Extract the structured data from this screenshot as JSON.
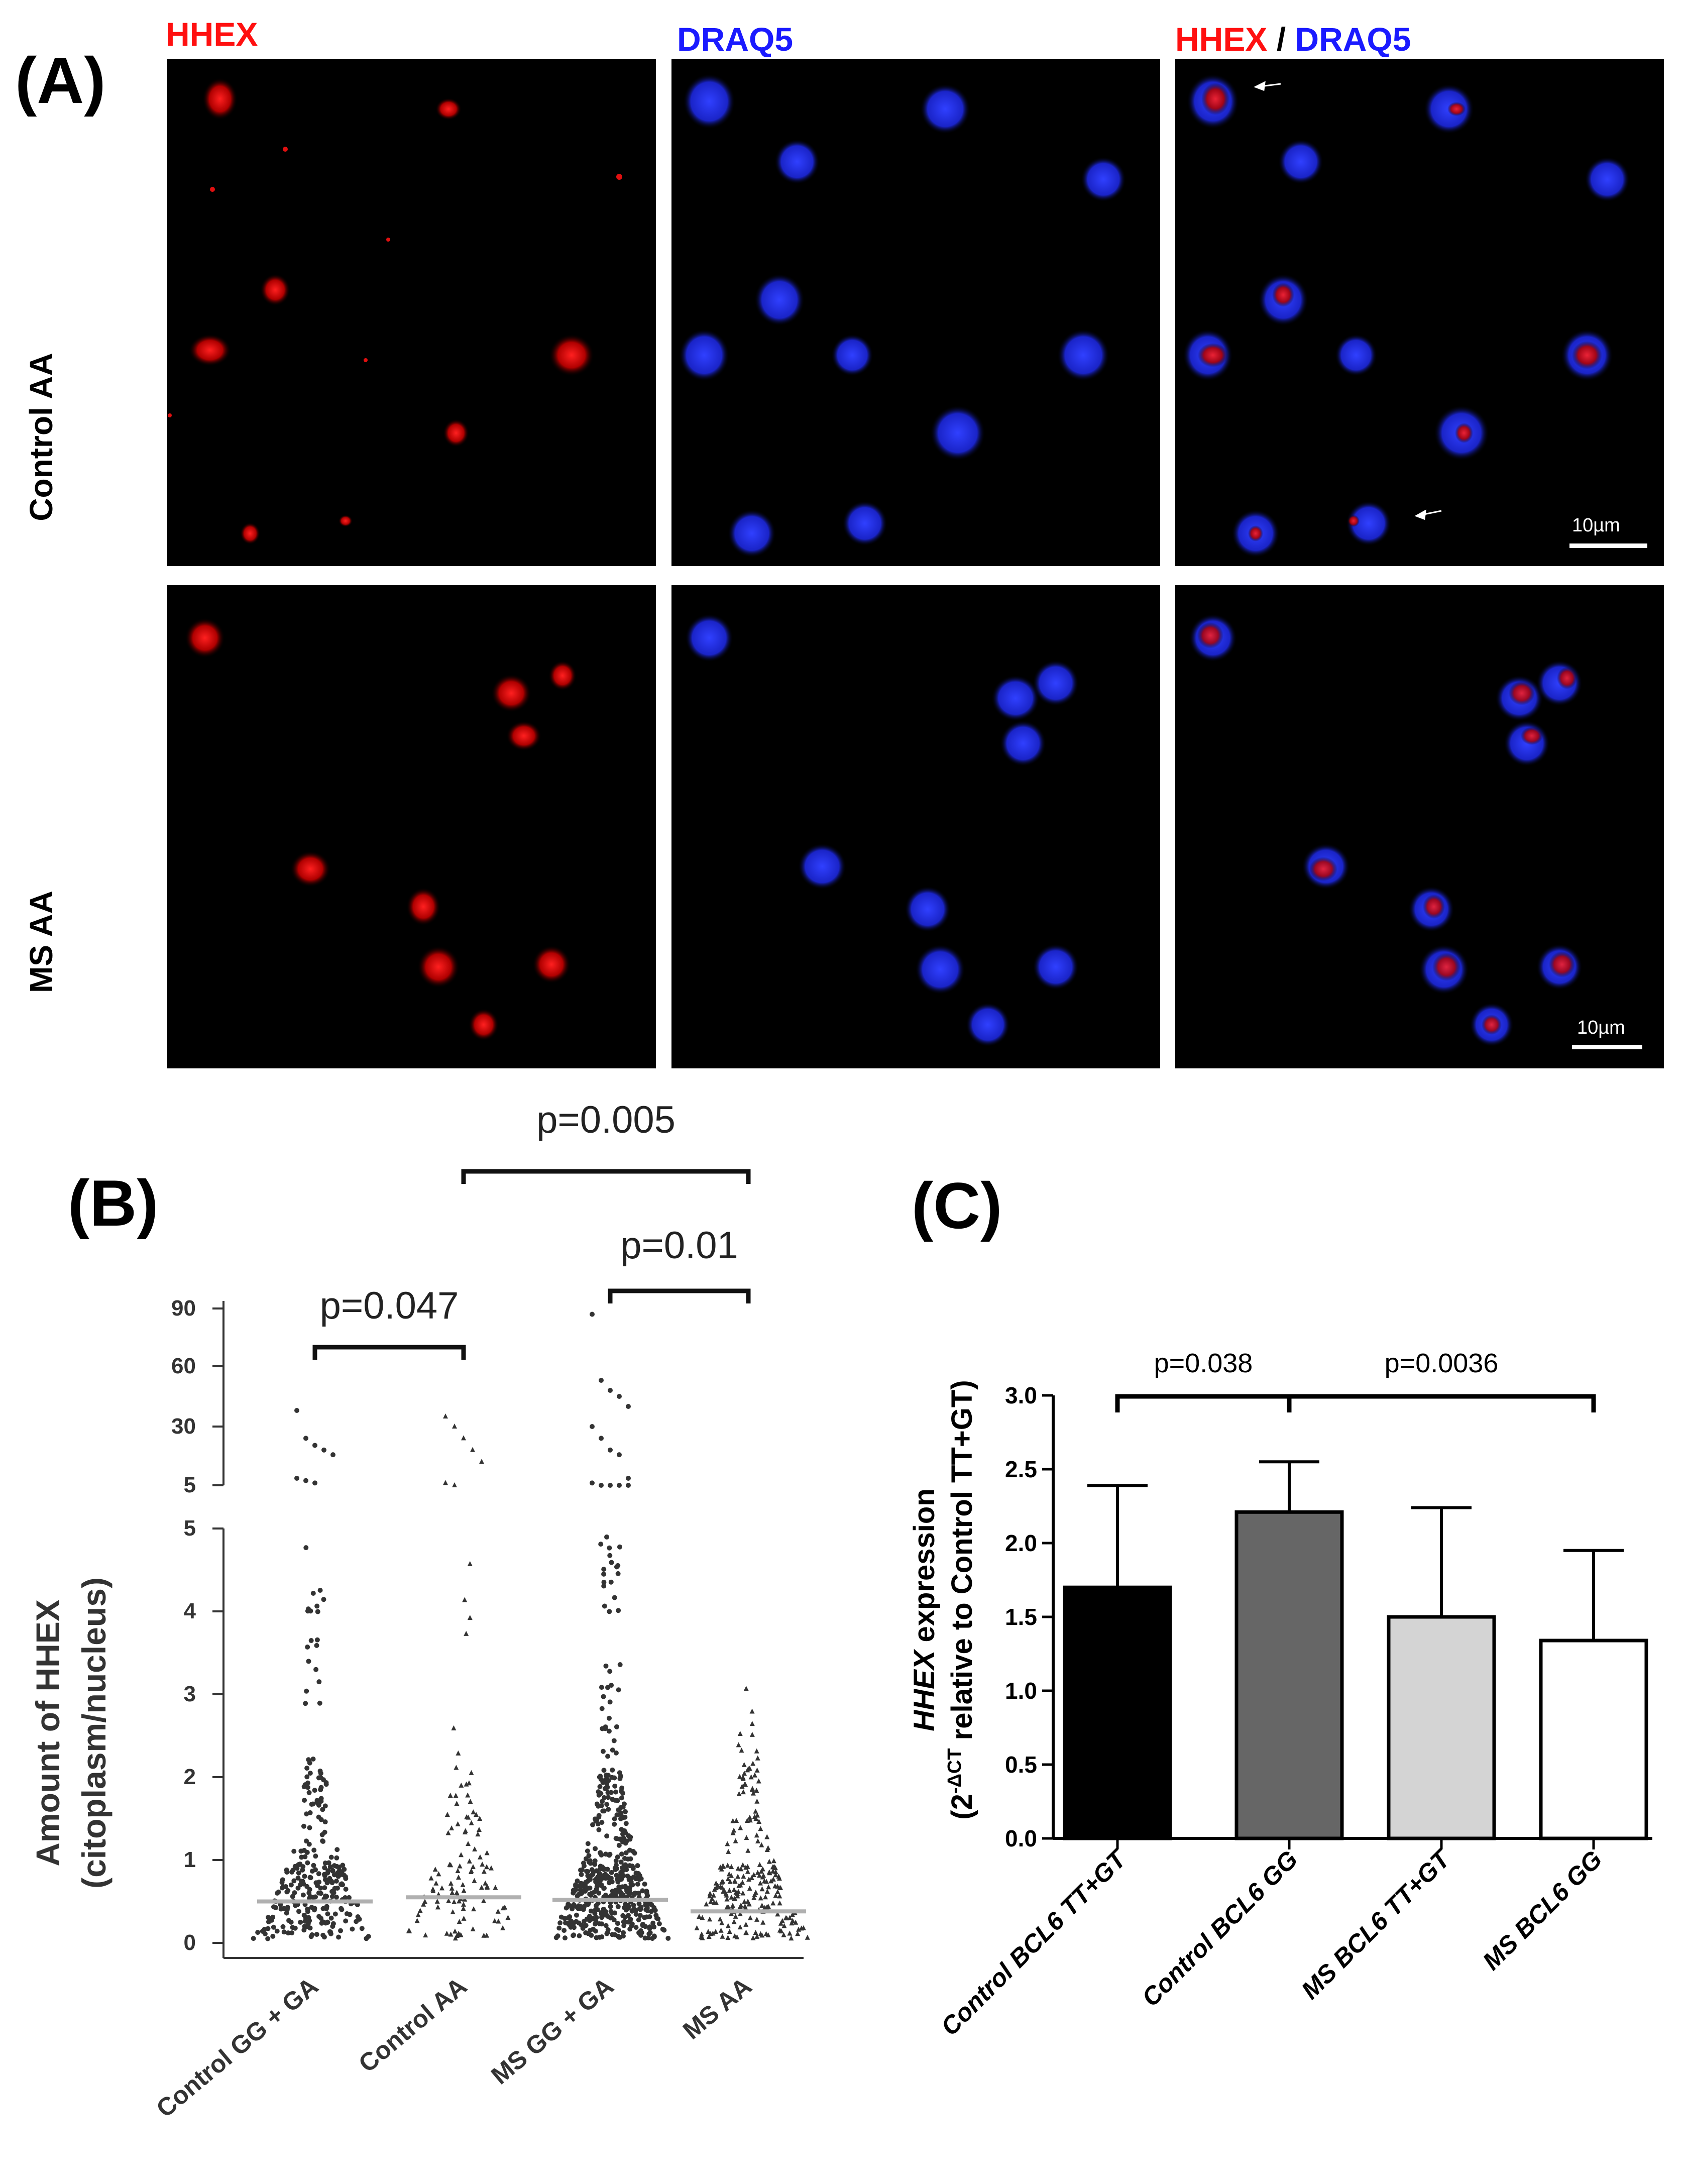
{
  "panel_a": {
    "label": "(A)",
    "col_titles": {
      "hhex": "HHEX",
      "draq5": "DRAQ5",
      "merge_part1": "HHEX",
      "merge_sep": "/",
      "merge_part2": "DRAQ5"
    },
    "rows": [
      "Control AA",
      "MS AA"
    ],
    "scale_bar": "10µm",
    "colors": {
      "hhex": "#ff1010",
      "draq5": "#1a1aff",
      "background": "#000000"
    }
  },
  "chart_data": [
    {
      "panel": "(B)",
      "type": "scatter",
      "ylabel_line1": "Amount of HHEX",
      "ylabel_line2": "(citoplasm/nucleus)",
      "categories": [
        "Control GG + GA",
        "Control AA",
        "MS GG + GA",
        "MS AA"
      ],
      "yaxis_lower": {
        "range": [
          0,
          5
        ],
        "ticks": [
          "0",
          "1",
          "2",
          "3",
          "4",
          "5"
        ]
      },
      "yaxis_upper": {
        "ticks": [
          "5",
          "30",
          "60",
          "90"
        ]
      },
      "axis_break": true,
      "medians": [
        0.5,
        0.55,
        0.52,
        0.38
      ],
      "point_counts": [
        280,
        110,
        520,
        240
      ],
      "upper_points": [
        [
          38,
          25,
          22,
          20,
          18,
          8,
          7,
          6
        ],
        [
          35,
          30,
          25,
          20,
          15,
          6,
          5
        ],
        [
          87,
          53,
          48,
          45,
          40,
          30,
          25,
          20,
          18,
          8,
          6,
          5,
          5,
          5,
          5
        ],
        []
      ],
      "comparisons": [
        {
          "label": "p=0.047",
          "from": 0,
          "to": 1
        },
        {
          "label": "p=0.01",
          "from": 2,
          "to": 3
        },
        {
          "label": "p=0.005",
          "from": 1,
          "to": 3
        }
      ],
      "median_color": "#b0b0b0",
      "point_color": "#333333"
    },
    {
      "panel": "(C)",
      "type": "bar",
      "ylabel_line1_italic": "HHEX",
      "ylabel_line1_rest": " expression",
      "ylabel_line2_pre": "(2",
      "ylabel_line2_sup": "-ΔCT",
      "ylabel_line2_post": " relative to Control TT+GT)",
      "categories": [
        "Control BCL6 TT+GT",
        "Control BCL6 GG",
        "MS BCL6 TT+GT",
        "MS BCL6 GG"
      ],
      "values": [
        1.7,
        2.21,
        1.5,
        1.34
      ],
      "errors": [
        0.69,
        0.34,
        0.74,
        0.61
      ],
      "colors": [
        "#000000",
        "#666666",
        "#d4d4d4",
        "#ffffff"
      ],
      "ylim": [
        0,
        3.0
      ],
      "yticks": [
        "0.0",
        "0.5",
        "1.0",
        "1.5",
        "2.0",
        "2.5",
        "3.0"
      ],
      "comparisons": [
        {
          "label": "p=0.038",
          "from": 0,
          "to": 1
        },
        {
          "label": "p=0.0036",
          "from": 1,
          "to": 3
        }
      ]
    }
  ]
}
